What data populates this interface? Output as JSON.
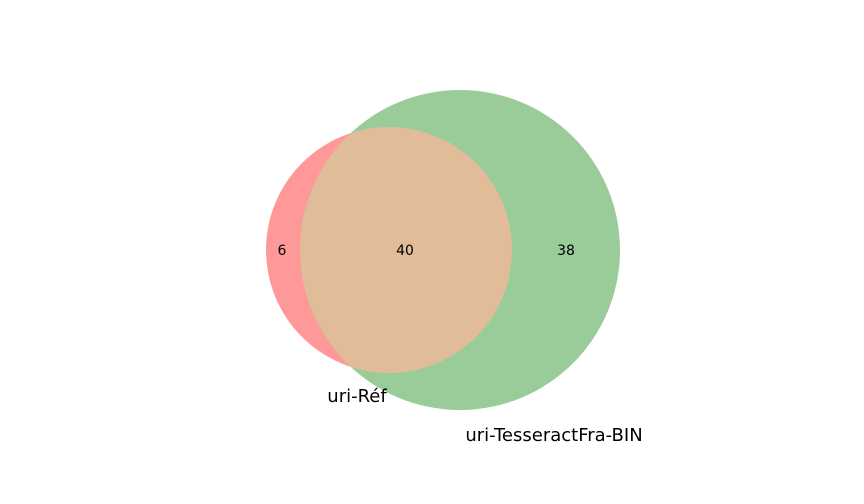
{
  "diagram": {
    "type": "venn2",
    "sets": [
      {
        "name": "uri-Réf",
        "color": "#ff9999"
      },
      {
        "name": "uri-TesseractFra-BIN",
        "color": "#99cc99"
      }
    ],
    "overlap_color": "#e0bd98",
    "regions": {
      "only_a": "6",
      "both": "40",
      "only_b": "38"
    }
  }
}
